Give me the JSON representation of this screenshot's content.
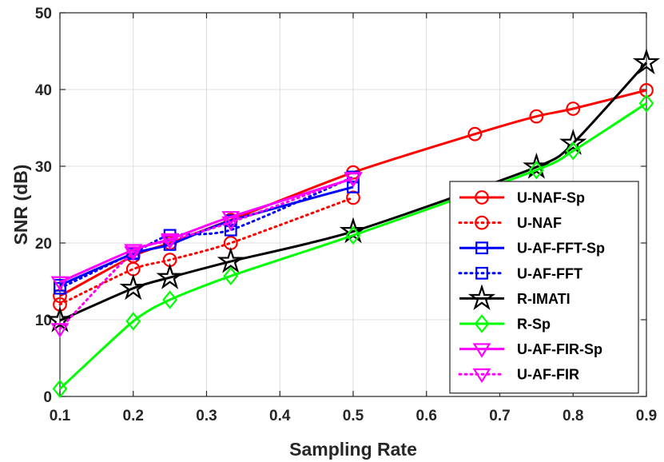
{
  "chart_data": {
    "type": "line",
    "title": "",
    "xlabel": "Sampling Rate",
    "ylabel": "SNR (dB)",
    "xlim": [
      0.1,
      0.9
    ],
    "ylim": [
      0,
      50
    ],
    "xticks": [
      0.1,
      0.2,
      0.3,
      0.4,
      0.5,
      0.6,
      0.7,
      0.8,
      0.9
    ],
    "yticks": [
      0,
      10,
      20,
      30,
      40,
      50
    ],
    "xtick_labels": [
      "0.1",
      "0.2",
      "0.3",
      "0.4",
      "0.5",
      "0.6",
      "0.7",
      "0.8",
      "0.9"
    ],
    "ytick_labels": [
      "0",
      "10",
      "20",
      "30",
      "40",
      "50"
    ],
    "grid": true,
    "legend_position": "right",
    "series": [
      {
        "name": "U-NAF-Sp",
        "color": "#ff0000",
        "dash": "solid",
        "marker": "circle",
        "x": [
          0.1,
          0.2,
          0.25,
          0.333,
          0.5,
          0.666,
          0.75,
          0.8,
          0.9
        ],
        "y": [
          13.1,
          18.3,
          20.0,
          23.0,
          29.2,
          34.2,
          36.5,
          37.5,
          39.9
        ]
      },
      {
        "name": "U-NAF",
        "color": "#ff0000",
        "dash": "dotted",
        "marker": "circle",
        "x": [
          0.1,
          0.2,
          0.25,
          0.333,
          0.5
        ],
        "y": [
          12.0,
          16.6,
          17.8,
          20.0,
          25.9
        ]
      },
      {
        "name": "U-AF-FFT-Sp",
        "color": "#0000ff",
        "dash": "solid",
        "marker": "square",
        "x": [
          0.1,
          0.2,
          0.25,
          0.333,
          0.5
        ],
        "y": [
          14.5,
          18.6,
          19.8,
          22.9,
          27.3
        ]
      },
      {
        "name": "U-AF-FFT",
        "color": "#0000ff",
        "dash": "dotted",
        "marker": "square",
        "x": [
          0.1,
          0.2,
          0.25,
          0.333,
          0.5
        ],
        "y": [
          14.1,
          18.7,
          21.0,
          21.7,
          28.6
        ]
      },
      {
        "name": "R-IMATI",
        "color": "#000000",
        "dash": "solid",
        "marker": "star",
        "x": [
          0.1,
          0.2,
          0.25,
          0.333,
          0.5,
          0.75,
          0.8,
          0.9
        ],
        "y": [
          9.9,
          14.1,
          15.5,
          17.6,
          21.5,
          29.9,
          33.0,
          43.5
        ]
      },
      {
        "name": "R-Sp",
        "color": "#00ff00",
        "dash": "solid",
        "marker": "diamond",
        "x": [
          0.1,
          0.2,
          0.25,
          0.333,
          0.5,
          0.75,
          0.8,
          0.9
        ],
        "y": [
          1.0,
          9.8,
          12.6,
          15.7,
          21.0,
          29.5,
          32.0,
          38.2
        ]
      },
      {
        "name": "U-AF-FIR-Sp",
        "color": "#ff00ff",
        "dash": "solid",
        "marker": "triangle-down",
        "x": [
          0.1,
          0.2,
          0.25,
          0.333,
          0.5
        ],
        "y": [
          14.9,
          19.1,
          20.5,
          23.4,
          28.4
        ]
      },
      {
        "name": "U-AF-FIR",
        "color": "#ff00ff",
        "dash": "dotted",
        "marker": "triangle-down",
        "x": [
          0.1,
          0.2,
          0.25,
          0.333,
          0.5
        ],
        "y": [
          8.8,
          18.8,
          20.3,
          22.7,
          28.5
        ]
      }
    ]
  }
}
